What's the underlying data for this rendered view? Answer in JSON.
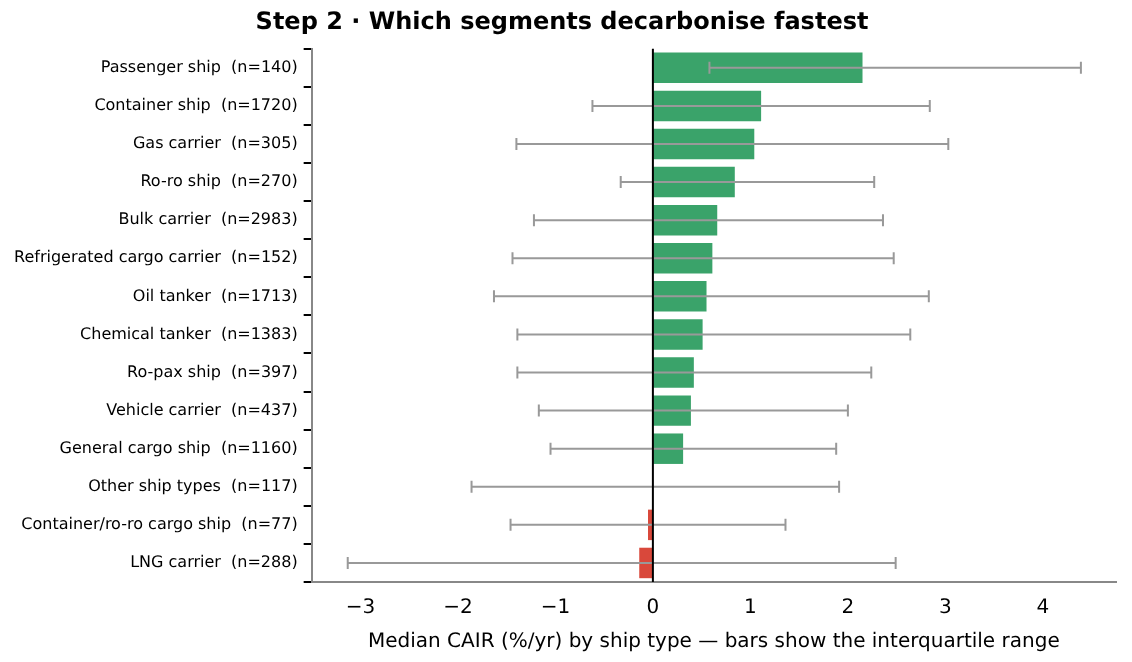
{
  "chart_data": {
    "type": "bar",
    "orientation": "horizontal",
    "title": "Step 2 · Which segments decarbonise fastest",
    "xlabel": "Median CAIR (%/yr) by ship type — bars show the interquartile range",
    "categories": [
      "Passenger ship  (n=140)",
      "Container ship  (n=1720)",
      "Gas carrier  (n=305)",
      "Ro-ro ship  (n=270)",
      "Bulk carrier  (n=2983)",
      "Refrigerated cargo carrier  (n=152)",
      "Oil tanker  (n=1713)",
      "Chemical tanker  (n=1383)",
      "Ro-pax ship  (n=397)",
      "Vehicle carrier  (n=437)",
      "General cargo ship  (n=1160)",
      "Other ship types  (n=117)",
      "Container/ro-ro cargo ship  (n=77)",
      "LNG carrier  (n=288)"
    ],
    "values": [
      2.15,
      1.11,
      1.04,
      0.84,
      0.66,
      0.61,
      0.55,
      0.51,
      0.42,
      0.39,
      0.31,
      0,
      -0.05,
      -0.14
    ],
    "colors": [
      "#3aa36a",
      "#3aa36a",
      "#3aa36a",
      "#3aa36a",
      "#3aa36a",
      "#3aa36a",
      "#3aa36a",
      "#3aa36a",
      "#3aa36a",
      "#3aa36a",
      "#3aa36a",
      "#3aa36a",
      "#d9483b",
      "#d9483b"
    ],
    "errors": [
      [
        0.58,
        4.39
      ],
      [
        -0.62,
        2.84
      ],
      [
        -1.4,
        3.03
      ],
      [
        -0.33,
        2.27
      ],
      [
        -1.22,
        2.36
      ],
      [
        -1.44,
        2.47
      ],
      [
        -1.63,
        2.83
      ],
      [
        -1.39,
        2.64
      ],
      [
        -1.39,
        2.24
      ],
      [
        -1.17,
        2.0
      ],
      [
        -1.05,
        1.88
      ],
      [
        -1.86,
        1.91
      ],
      [
        -1.46,
        1.36
      ],
      [
        -3.13,
        2.49
      ]
    ],
    "xlim": [
      -3.5,
      4.75
    ],
    "xticks": [
      {
        "value": -3,
        "label": "−3"
      },
      {
        "value": -2,
        "label": "−2"
      },
      {
        "value": -1,
        "label": "−1"
      },
      0,
      1,
      2,
      3,
      4
    ],
    "ref_lines": [
      {
        "axis": "x",
        "value": 0,
        "color": "#000000"
      }
    ],
    "grid": false,
    "legend": false
  }
}
